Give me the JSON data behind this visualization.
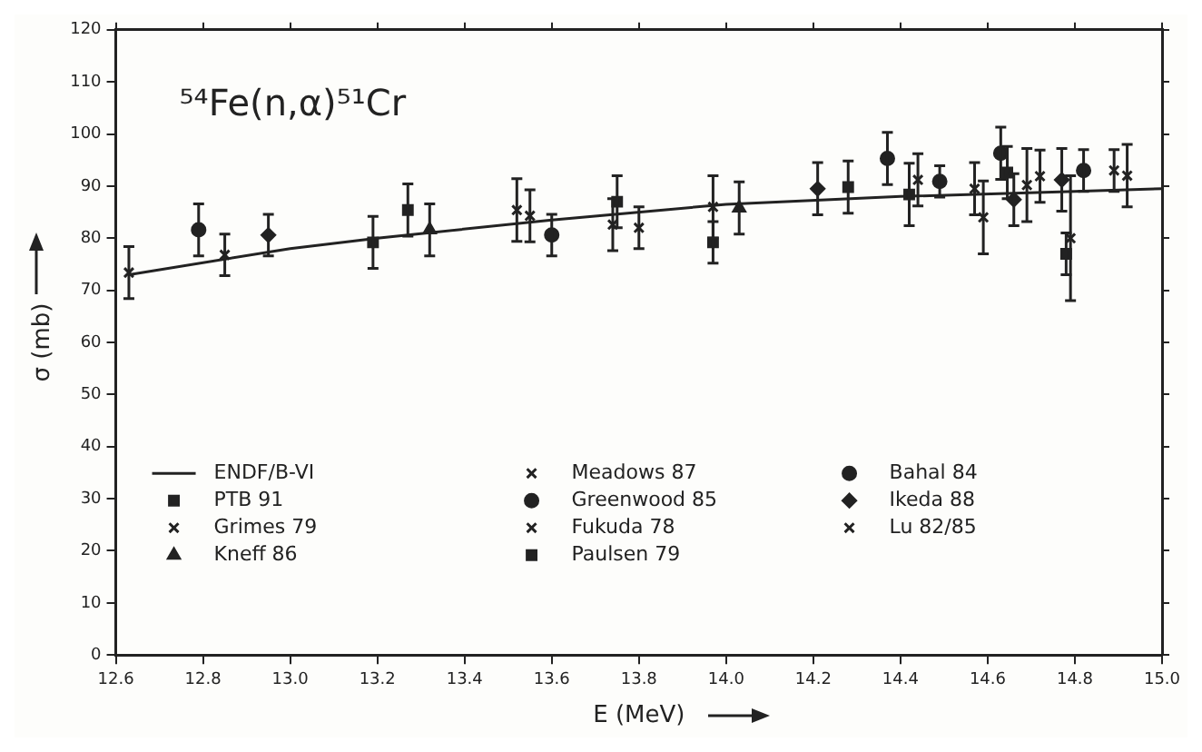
{
  "chart_data": {
    "type": "scatter",
    "title": "⁵⁴Fe(n,α)⁵¹Cr",
    "xlabel": "E (MeV)",
    "ylabel": "σ (mb)",
    "xlim": [
      12.6,
      15.0
    ],
    "xticks": [
      12.6,
      12.8,
      {
        "value": 13,
        "label": "13.0"
      },
      13.2,
      13.4,
      13.6,
      13.8,
      {
        "value": 14,
        "label": "14.0"
      },
      14.2,
      14.4,
      14.6,
      14.8,
      {
        "value": 15,
        "label": "15.0"
      }
    ],
    "ylim": [
      0,
      120
    ],
    "yticks": [
      0,
      10,
      20,
      30,
      40,
      50,
      60,
      70,
      80,
      90,
      100,
      110,
      120
    ],
    "grid": false,
    "legend": "bottom",
    "series": [
      {
        "name": "ENDF/B-VI",
        "type": "line",
        "color": "#222222",
        "marker": "none",
        "x": [
          12.63,
          13.0,
          13.2,
          13.6,
          14.0,
          14.4,
          14.8,
          15.0
        ],
        "values": [
          73,
          78,
          80,
          83.5,
          86.5,
          88,
          89,
          89.5
        ]
      },
      {
        "name": "PTB 91",
        "color": "#222222",
        "marker": "square",
        "x": [
          13.27,
          14.28,
          14.42
        ],
        "values": [
          85.4,
          89.8,
          88.4
        ],
        "errors": [
          5,
          5,
          6
        ]
      },
      {
        "name": "Grimes 79",
        "color": "#222222",
        "marker": "cross",
        "x": [
          12.85,
          13.55,
          13.8
        ],
        "values": [
          76.8,
          84.3,
          82
        ],
        "errors": [
          4,
          5,
          4
        ]
      },
      {
        "name": "Kneff 86",
        "color": "#222222",
        "marker": "triangle",
        "x": [
          13.32,
          14.03
        ],
        "values": [
          81.6,
          85.8
        ],
        "errors": [
          5,
          5
        ]
      },
      {
        "name": "Meadows 87",
        "color": "#222222",
        "marker": "cross",
        "x": [
          13.52,
          14.44,
          14.72
        ],
        "values": [
          85.4,
          91.2,
          91.9
        ],
        "errors": [
          6,
          5,
          5
        ]
      },
      {
        "name": "Greenwood 85",
        "color": "#222222",
        "marker": "circle",
        "x": [
          12.79,
          13.6,
          14.49
        ],
        "values": [
          81.6,
          80.6,
          90.9
        ],
        "errors": [
          5,
          4,
          3
        ]
      },
      {
        "name": "Fukuda 78",
        "color": "#222222",
        "marker": "cross",
        "x": [
          12.63,
          13.74,
          14.57,
          14.59,
          14.89
        ],
        "values": [
          73.4,
          82.6,
          89.5,
          84,
          93
        ],
        "errors": [
          5,
          5,
          5,
          7,
          4
        ]
      },
      {
        "name": "Paulsen 79",
        "color": "#222222",
        "marker": "square",
        "x": [
          13.19,
          13.75,
          13.97,
          14.645,
          14.78
        ],
        "values": [
          79.2,
          87,
          79.2,
          92.6,
          77
        ],
        "errors": [
          5,
          5,
          4,
          5,
          4
        ]
      },
      {
        "name": "Bahal 84",
        "color": "#222222",
        "marker": "circle",
        "x": [
          14.37,
          14.63,
          14.82
        ],
        "values": [
          95.3,
          96.3,
          93
        ],
        "errors": [
          5,
          5,
          4
        ]
      },
      {
        "name": "Ikeda 88",
        "color": "#222222",
        "marker": "diamond",
        "x": [
          12.95,
          14.21,
          14.66,
          14.77
        ],
        "values": [
          80.6,
          89.5,
          87.4,
          91.2
        ],
        "errors": [
          4,
          5,
          5,
          6
        ]
      },
      {
        "name": "Lu 82/85",
        "color": "#222222",
        "marker": "cross",
        "x": [
          13.97,
          14.69,
          14.79,
          14.92
        ],
        "values": [
          86,
          90.2,
          80,
          92
        ],
        "errors": [
          6,
          7,
          12,
          6
        ]
      }
    ]
  }
}
